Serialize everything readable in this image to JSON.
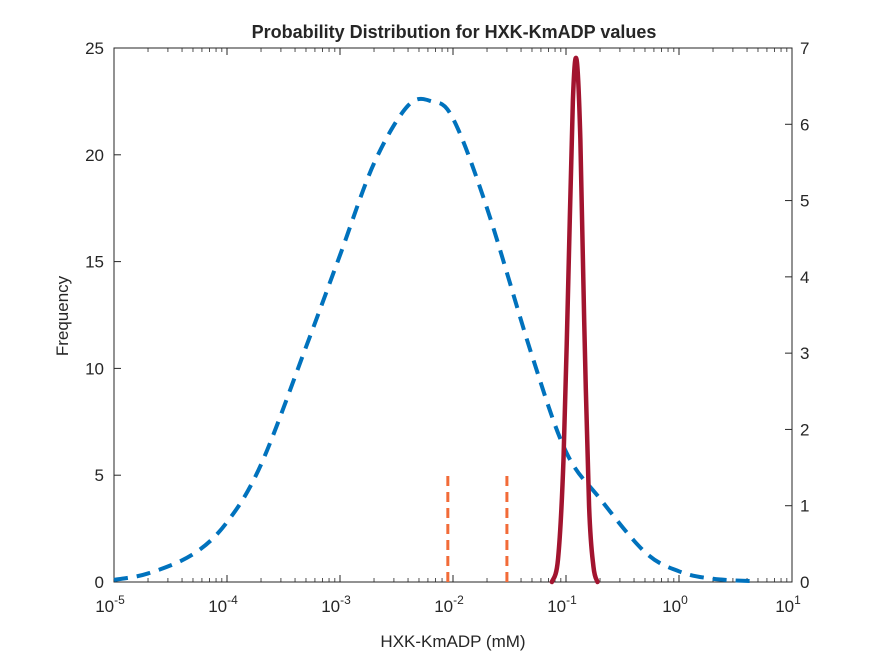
{
  "chart_data": {
    "type": "line",
    "title": "Probability Distribution for HXK-KmADP values",
    "xlabel": "HXK-KmADP (mM)",
    "ylabel": "Frequency",
    "x_scale": "log",
    "xlim": [
      1e-05,
      10
    ],
    "ylim_left": [
      0,
      25
    ],
    "ylim_right": [
      0,
      7
    ],
    "x_ticks": [
      1e-05,
      0.0001,
      0.001,
      0.01,
      0.1,
      1,
      10
    ],
    "x_tick_base": "10",
    "x_tick_exponents": [
      "-5",
      "-4",
      "-3",
      "-2",
      "-1",
      "0",
      "1"
    ],
    "y_ticks_left": [
      "0",
      "5",
      "10",
      "15",
      "20",
      "25"
    ],
    "y_ticks_right": [
      "0",
      "1",
      "2",
      "3",
      "4",
      "5",
      "6",
      "7"
    ],
    "grid": false,
    "series": [
      {
        "axis": "left",
        "style": "dashed",
        "color": "#0072BD",
        "x": [
          1e-05,
          2e-05,
          5e-05,
          0.0001,
          0.0002,
          0.0005,
          0.001,
          0.002,
          0.004,
          0.0065,
          0.01,
          0.02,
          0.05,
          0.1,
          0.2,
          0.5,
          1,
          2,
          5
        ],
        "y": [
          0.1,
          0.4,
          1.3,
          2.8,
          5.5,
          11.0,
          15.3,
          19.6,
          22.3,
          22.5,
          21.7,
          17.5,
          10.6,
          6.1,
          3.9,
          1.4,
          0.5,
          0.15,
          0.03
        ]
      },
      {
        "axis": "right",
        "style": "solid",
        "color": "#A2142F",
        "x": [
          0.075,
          0.085,
          0.095,
          0.105,
          0.115,
          0.124,
          0.134,
          0.145,
          0.16,
          0.175,
          0.19
        ],
        "y": [
          0.0,
          0.3,
          1.6,
          4.0,
          6.3,
          6.85,
          5.8,
          3.4,
          1.0,
          0.2,
          0.0
        ]
      },
      {
        "axis": "left",
        "style": "dashed",
        "color": "#F26B38",
        "type": "vline",
        "x": [
          0.009,
          0.009
        ],
        "y": [
          0,
          5
        ]
      },
      {
        "axis": "left",
        "style": "dashed",
        "color": "#F26B38",
        "type": "vline",
        "x": [
          0.03,
          0.03
        ],
        "y": [
          0,
          5
        ]
      }
    ]
  }
}
